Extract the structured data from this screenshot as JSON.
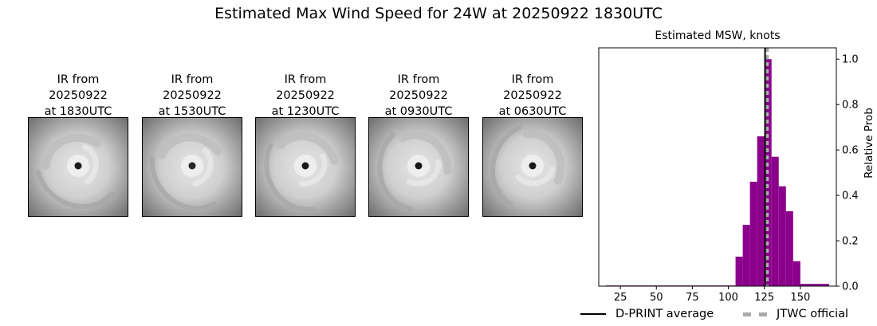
{
  "title": "Estimated Max Wind Speed for 24W at 20250922 1830UTC",
  "ir_panels": [
    {
      "line1": "IR from",
      "line2": "20250922",
      "line3": "at 1830UTC",
      "eye_darkness": 0.9
    },
    {
      "line1": "IR from",
      "line2": "20250922",
      "line3": "at 1530UTC",
      "eye_darkness": 0.85
    },
    {
      "line1": "IR from",
      "line2": "20250922",
      "line3": "at 1230UTC",
      "eye_darkness": 0.9
    },
    {
      "line1": "IR from",
      "line2": "20250922",
      "line3": "at 0930UTC",
      "eye_darkness": 0.9
    },
    {
      "line1": "IR from",
      "line2": "20250922",
      "line3": "at 0630UTC",
      "eye_darkness": 0.9
    }
  ],
  "chart_data": {
    "type": "bar",
    "title": "Estimated MSW, knots",
    "xlabel": "",
    "ylabel": "Relative Prob",
    "xlim": [
      10,
      175
    ],
    "ylim": [
      0,
      1.05
    ],
    "xticks": [
      25,
      50,
      75,
      100,
      125,
      150
    ],
    "yticks": [
      0.0,
      0.2,
      0.4,
      0.6,
      0.8,
      1.0
    ],
    "y_axis_side": "right",
    "bar_color": "#8b008b",
    "bar_width": 5,
    "bins": [
      {
        "x": 15,
        "width": 90,
        "value": 0.003
      },
      {
        "x": 105,
        "value": 0.13
      },
      {
        "x": 110,
        "value": 0.27
      },
      {
        "x": 115,
        "value": 0.46
      },
      {
        "x": 120,
        "value": 0.66
      },
      {
        "x": 125,
        "value": 1.0
      },
      {
        "x": 130,
        "value": 0.57
      },
      {
        "x": 135,
        "value": 0.44
      },
      {
        "x": 140,
        "value": 0.33
      },
      {
        "x": 145,
        "value": 0.11
      },
      {
        "x": 150,
        "width": 20,
        "value": 0.01
      }
    ],
    "dprint_average": 125.5,
    "jtwc_official": 127,
    "legend": [
      {
        "label": "D-PRINT average",
        "color": "#000000",
        "style": "solid"
      },
      {
        "label": "JTWC official",
        "color": "#aaaaaa",
        "style": "dashed"
      }
    ],
    "legend_location": "bottom"
  }
}
